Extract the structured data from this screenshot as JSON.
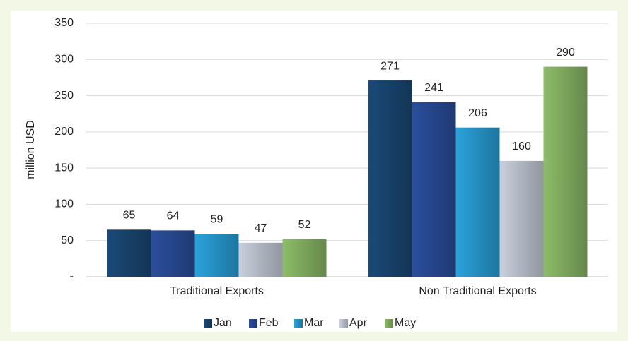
{
  "chart_data": {
    "type": "bar",
    "y_label": "million USD",
    "categories": [
      "Traditional Exports",
      "Non Traditional Exports"
    ],
    "series": [
      {
        "name": "Jan",
        "color": "#1b4a78",
        "values": [
          65,
          271
        ]
      },
      {
        "name": "Feb",
        "color": "#2b4f9e",
        "values": [
          64,
          241
        ]
      },
      {
        "name": "Mar",
        "color": "#2aa3dc",
        "values": [
          59,
          206
        ]
      },
      {
        "name": "Apr",
        "color": "#c9d0dd",
        "values": [
          47,
          160
        ]
      },
      {
        "name": "May",
        "color": "#8dbd68",
        "values": [
          52,
          290
        ]
      }
    ],
    "ylim": [
      0,
      350
    ],
    "yticks": [
      {
        "value": 0,
        "label": "-"
      },
      50,
      100,
      150,
      200,
      250,
      300,
      350
    ],
    "grid": true,
    "legend": "bottom"
  }
}
